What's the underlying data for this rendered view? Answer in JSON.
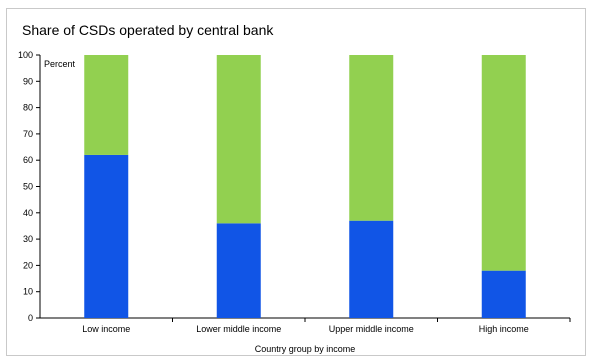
{
  "chart_data": {
    "type": "bar",
    "stacked": true,
    "title": "Share of CSDs operated by central bank",
    "xlabel": "Country group  by income",
    "ylabel": "Percent",
    "ylim": [
      0,
      100
    ],
    "yticks": [
      0,
      10,
      20,
      30,
      40,
      50,
      60,
      70,
      80,
      90,
      100
    ],
    "categories": [
      "Low income",
      "Lower middle income",
      "Upper middle income",
      "High income"
    ],
    "series": [
      {
        "values": [
          62,
          36,
          37,
          18
        ],
        "color": "#1155e6"
      },
      {
        "values": [
          38,
          64,
          63,
          82
        ],
        "color": "#92d050"
      }
    ],
    "grid": false
  }
}
